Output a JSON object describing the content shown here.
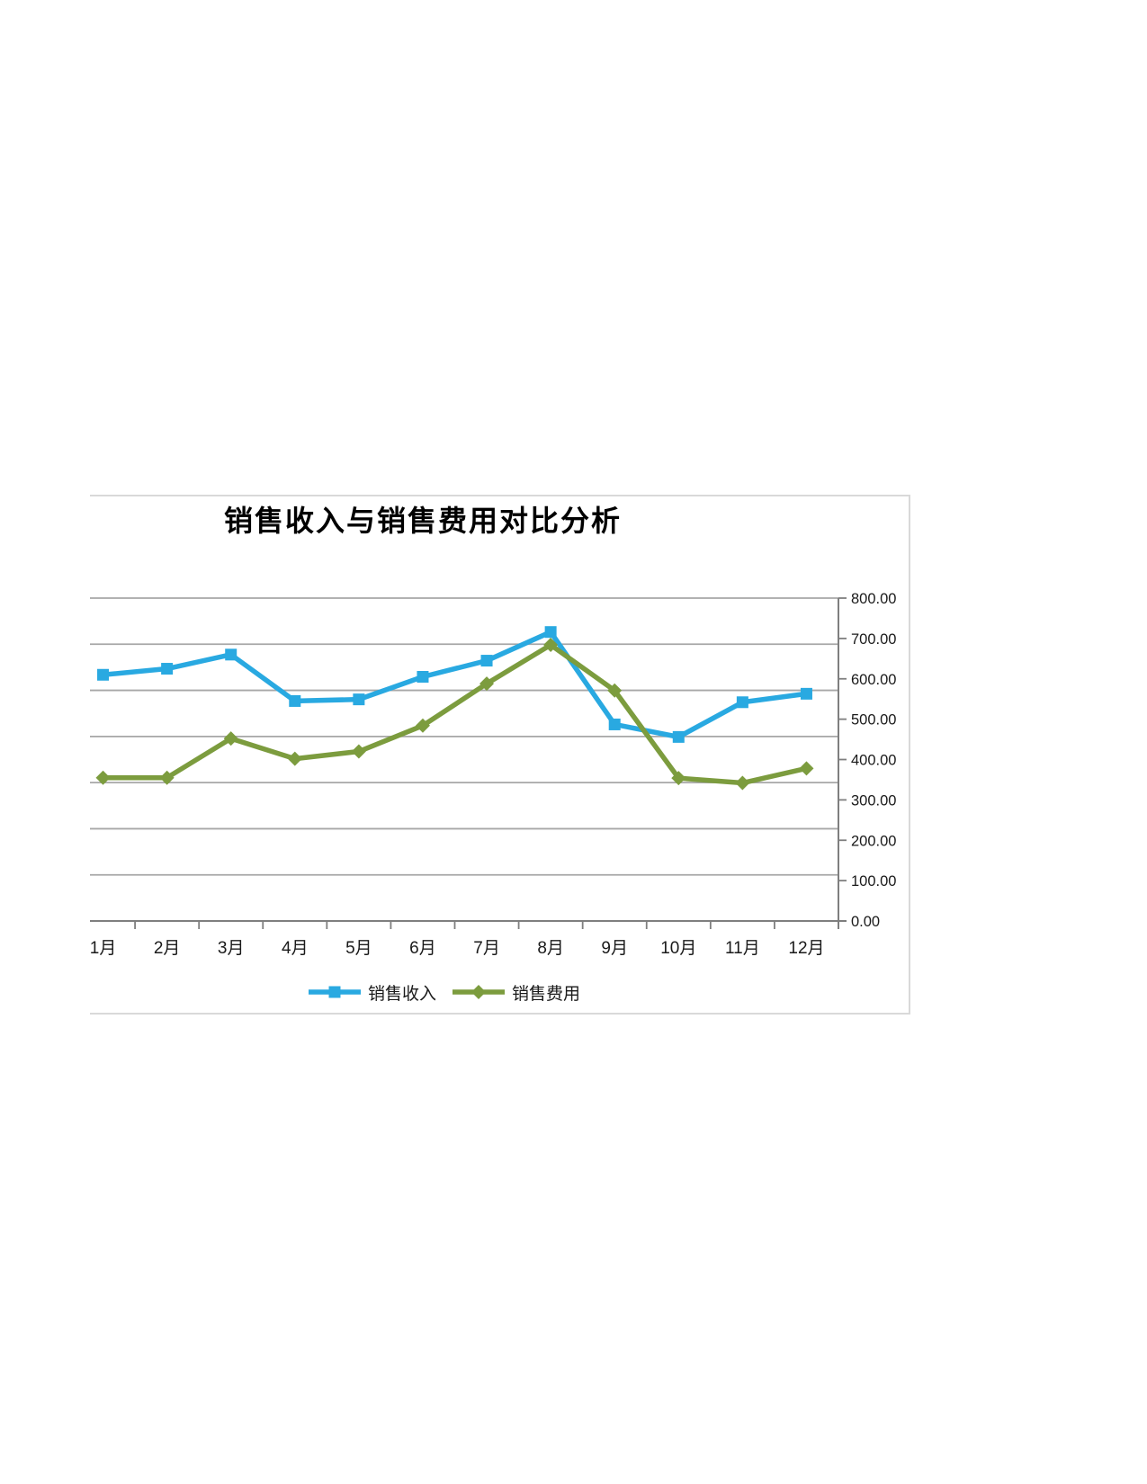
{
  "chart_data": {
    "type": "line",
    "title": "销售收入与销售费用对比分析",
    "categories": [
      "1月",
      "2月",
      "3月",
      "4月",
      "5月",
      "6月",
      "7月",
      "8月",
      "9月",
      "10月",
      "11月",
      "12月"
    ],
    "series": [
      {
        "name": "销售收入",
        "marker": "square",
        "color": "#29A9E1",
        "values": [
          610,
          625,
          660,
          545,
          549,
          605,
          645,
          716,
          487,
          456,
          542,
          563
        ]
      },
      {
        "name": "销售费用",
        "marker": "diamond",
        "color": "#7C9C3E",
        "values": [
          355,
          355,
          452,
          402,
          420,
          484,
          588,
          684,
          571,
          354,
          342,
          378
        ]
      }
    ],
    "y_axis": {
      "side": "right",
      "min": 0,
      "max": 800,
      "step": 100,
      "tick_labels": [
        "0.00",
        "100.00",
        "200.00",
        "300.00",
        "400.00",
        "500.00",
        "600.00",
        "700.00",
        "800.00"
      ]
    },
    "gridlines": {
      "horizontal": true,
      "divisions": 7
    },
    "legend": {
      "position": "bottom"
    },
    "colors": {
      "gridline": "#A7A7A7",
      "axis": "#7F7F7F",
      "frame_border": "#D9D9D9",
      "label_text": "#1A1A1A"
    }
  }
}
